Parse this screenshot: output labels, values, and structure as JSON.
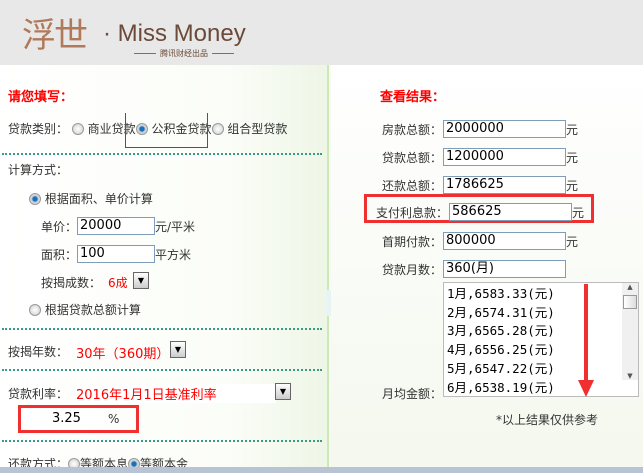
{
  "header": {
    "logo_cn": "浮世",
    "logo_en": "· Miss Money",
    "logo_sub": "腾讯财经出品"
  },
  "form": {
    "title": "请您填写：",
    "loan_type_label": "贷款类别：",
    "loan_types": [
      "商业贷款",
      "公积金贷款",
      "组合型贷款"
    ],
    "loan_type_selected": 1,
    "calc_label": "计算方式：",
    "calc_by_area": "根据面积、单价计算",
    "unit_price_label": "单价：",
    "unit_price": "20000",
    "unit_price_unit": "元/平米",
    "area_label": "面积：",
    "area": "100",
    "area_unit": "平方米",
    "ratio_label": "按揭成数：",
    "ratio": "6成",
    "calc_by_total": "根据贷款总额计算",
    "years_label": "按揭年数：",
    "years": "30年（360期）",
    "rate_label": "贷款利率：",
    "rate_option": "2016年1月1日基准利率",
    "rate_value": "3.25",
    "rate_unit": "%",
    "repay_label": "还款方式：",
    "repay_options": [
      "等额本息",
      "等额本金"
    ],
    "repay_selected": 1
  },
  "result": {
    "title": "查看结果：",
    "house_total_label": "房款总额：",
    "house_total": "2000000",
    "loan_total_label": "贷款总额：",
    "loan_total": "1200000",
    "repay_total_label": "还款总额：",
    "repay_total": "1786625",
    "interest_label": "支付利息款：",
    "interest": "586625",
    "down_payment_label": "首期付款：",
    "down_payment": "800000",
    "months_label": "贷款月数：",
    "months": "360(月)",
    "monthly_label": "月均金额：",
    "yuan": "元",
    "monthly_list": [
      "1月,6583.33(元)",
      "2月,6574.31(元)",
      "3月,6565.28(元)",
      "4月,6556.25(元)",
      "5月,6547.22(元)",
      "6月,6538.19(元)"
    ],
    "note": "*以上结果仅供参考"
  },
  "colors": {
    "highlight": "#f03030",
    "label_red": "#ff0000"
  }
}
